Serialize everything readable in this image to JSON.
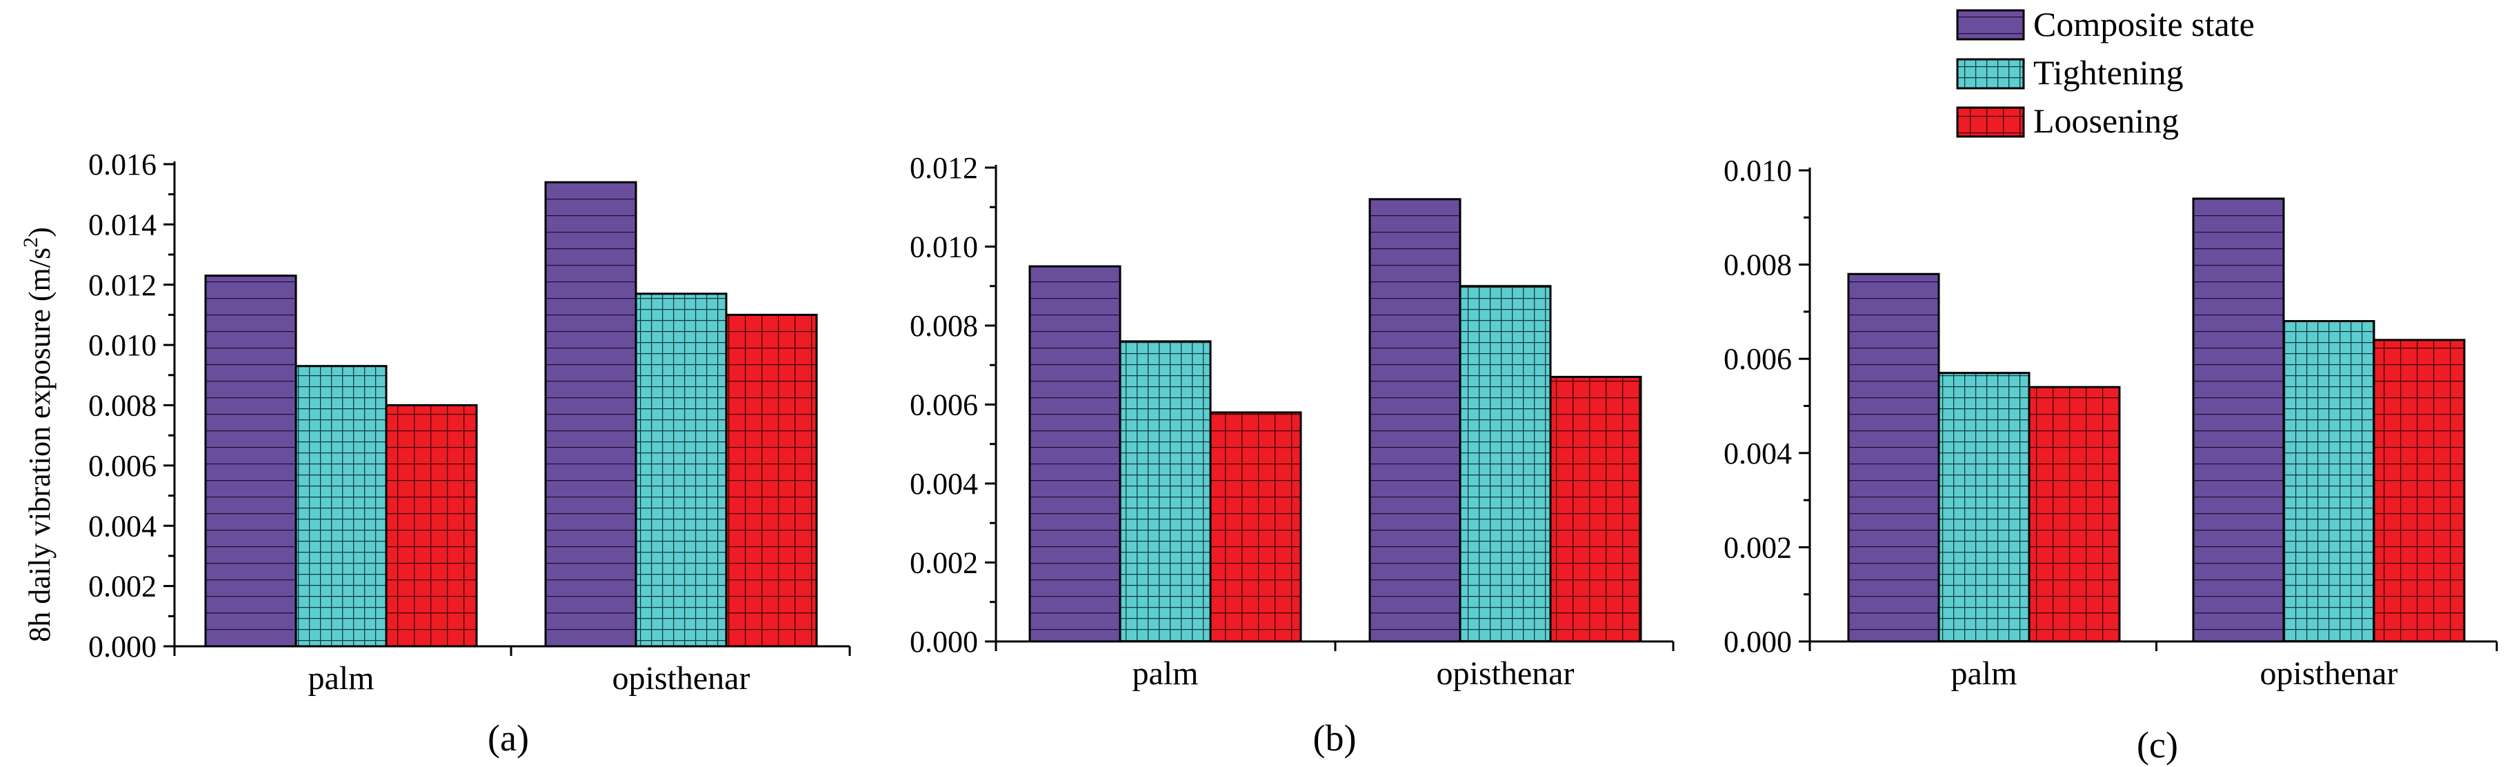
{
  "chart_data": [
    {
      "type": "bar",
      "panel_label": "(a)",
      "categories": [
        "palm",
        "opisthenar"
      ],
      "series": [
        {
          "name": "Composite state",
          "values": [
            0.0123,
            0.0154
          ]
        },
        {
          "name": "Tightening",
          "values": [
            0.0093,
            0.0117
          ]
        },
        {
          "name": "Loosening",
          "values": [
            0.008,
            0.011
          ]
        }
      ],
      "ylabel": "8h daily vibration exposure (m/s",
      "ylabel_sup": "2",
      "ylabel_end": ")",
      "ylim": [
        0,
        0.016
      ],
      "yticks": [
        "0.000",
        "0.002",
        "0.004",
        "0.006",
        "0.008",
        "0.010",
        "0.012",
        "0.014",
        "0.016"
      ]
    },
    {
      "type": "bar",
      "panel_label": "(b)",
      "categories": [
        "palm",
        "opisthenar"
      ],
      "series": [
        {
          "name": "Composite state",
          "values": [
            0.0095,
            0.0112
          ]
        },
        {
          "name": "Tightening",
          "values": [
            0.0076,
            0.009
          ]
        },
        {
          "name": "Loosening",
          "values": [
            0.0058,
            0.0067
          ]
        }
      ],
      "ylim": [
        0,
        0.012
      ],
      "yticks": [
        "0.000",
        "0.002",
        "0.004",
        "0.006",
        "0.008",
        "0.010",
        "0.012"
      ]
    },
    {
      "type": "bar",
      "panel_label": "(c)",
      "categories": [
        "palm",
        "opisthenar"
      ],
      "series": [
        {
          "name": "Composite state",
          "values": [
            0.0078,
            0.0094
          ]
        },
        {
          "name": "Tightening",
          "values": [
            0.0057,
            0.0068
          ]
        },
        {
          "name": "Loosening",
          "values": [
            0.0054,
            0.0064
          ]
        }
      ],
      "ylim": [
        0,
        0.01
      ],
      "yticks": [
        "0.000",
        "0.002",
        "0.004",
        "0.006",
        "0.008",
        "0.010"
      ]
    }
  ],
  "legend": {
    "position": "top-right",
    "items": [
      {
        "label": "Composite state",
        "color": "#6a4e9e",
        "pattern": "horizontal"
      },
      {
        "label": "Tightening",
        "color": "#5ecdd0",
        "pattern": "grid-fine"
      },
      {
        "label": "Loosening",
        "color": "#ee1c24",
        "pattern": "grid"
      }
    ]
  }
}
